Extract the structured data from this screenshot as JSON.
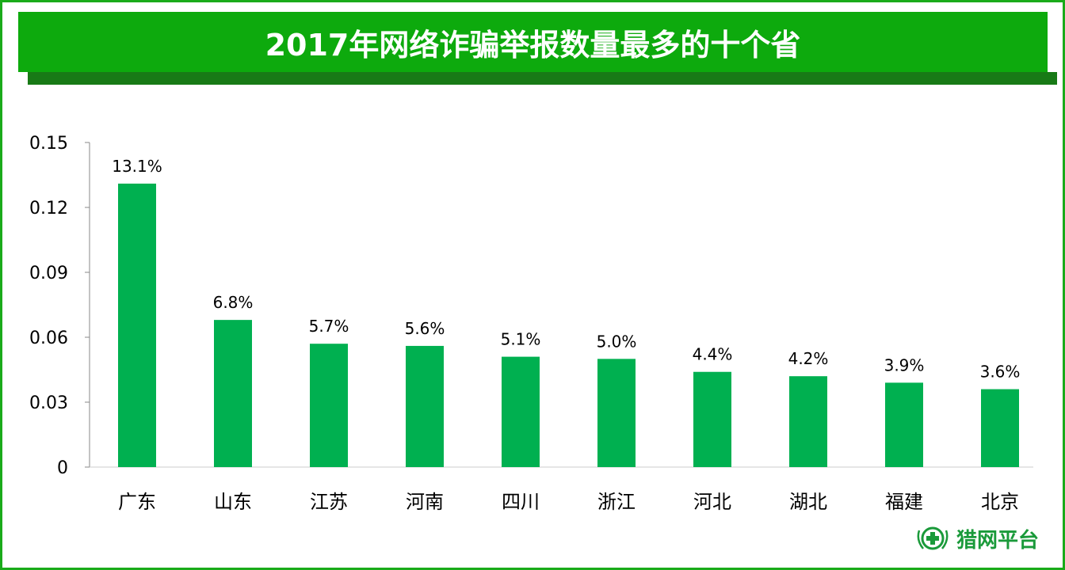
{
  "chart_data": {
    "type": "bar",
    "title": "2017年网络诈骗举报数量最多的十个省",
    "categories": [
      "广东",
      "山东",
      "江苏",
      "河南",
      "四川",
      "浙江",
      "河北",
      "湖北",
      "福建",
      "北京"
    ],
    "values": [
      0.131,
      0.068,
      0.057,
      0.056,
      0.051,
      0.05,
      0.044,
      0.042,
      0.039,
      0.036
    ],
    "data_labels": [
      "13.1%",
      "6.8%",
      "5.7%",
      "5.6%",
      "5.1%",
      "5.0%",
      "4.4%",
      "4.2%",
      "3.9%",
      "3.6%"
    ],
    "yticks": [
      "0",
      "0.03",
      "0.06",
      "0.09",
      "0.12",
      "0.15"
    ],
    "ylim": [
      0,
      0.15
    ],
    "xlabel": "",
    "ylabel": "",
    "grid": false,
    "bar_color": "#00b050"
  },
  "logo": {
    "text": "猎网平台"
  }
}
